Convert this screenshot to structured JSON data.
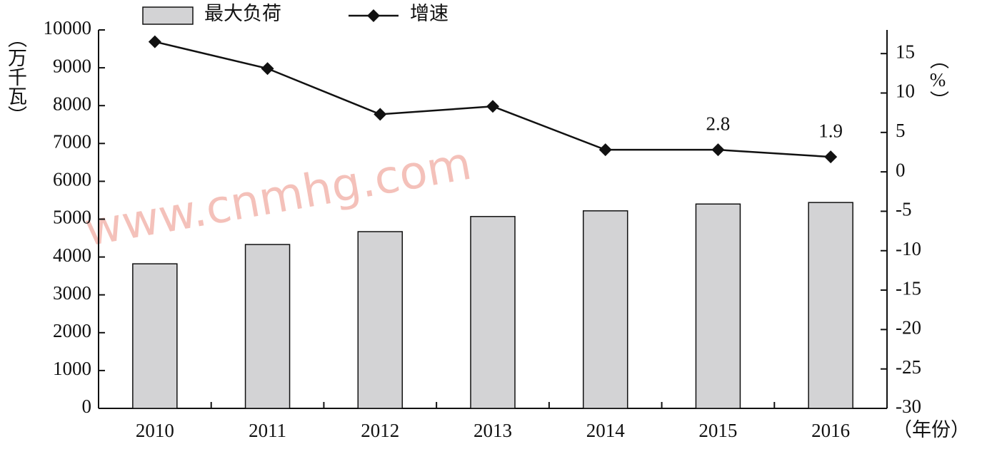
{
  "chart_data": {
    "type": "bar_line",
    "y_label": "（万千瓦）",
    "y2_label": "（%）",
    "x_label": "（年份）",
    "watermark": "www.cnmhg.com",
    "categories": [
      "2010",
      "2011",
      "2012",
      "2013",
      "2014",
      "2015",
      "2016"
    ],
    "series": [
      {
        "name": "最大负荷",
        "type": "bar",
        "color": "#d3d3d5",
        "values": [
          3820,
          4330,
          4670,
          5070,
          5220,
          5400,
          5440
        ]
      },
      {
        "name": "增速",
        "type": "line",
        "axis": "y2",
        "color": "#111111",
        "values": [
          16.5,
          13.1,
          7.3,
          8.3,
          2.8,
          2.8,
          1.9
        ],
        "value_labels": [
          null,
          null,
          null,
          null,
          null,
          "2.8",
          "1.9"
        ]
      }
    ],
    "ylim": [
      0,
      10000
    ],
    "yticks": [
      0,
      1000,
      2000,
      3000,
      4000,
      5000,
      6000,
      7000,
      8000,
      9000,
      10000
    ],
    "y2lim": [
      -30,
      18
    ],
    "y2ticks": [
      -30,
      -25,
      -20,
      -15,
      -10,
      -5,
      0,
      5,
      10,
      15
    ]
  }
}
